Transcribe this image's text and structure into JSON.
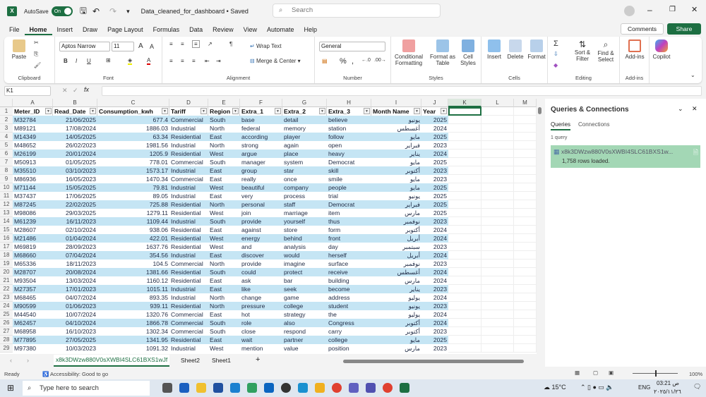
{
  "app": {
    "autosave_label": "AutoSave",
    "autosave_state": "On",
    "doc_title": "Data_cleaned_for_dashboard • Saved",
    "search_placeholder": "Search"
  },
  "menu": [
    "File",
    "Home",
    "Insert",
    "Draw",
    "Page Layout",
    "Formulas",
    "Data",
    "Review",
    "View",
    "Automate",
    "Help"
  ],
  "menu_active": "Home",
  "buttons": {
    "comments": "Comments",
    "share": "Share"
  },
  "ribbon": {
    "clipboard": {
      "paste": "Paste",
      "label": "Clipboard"
    },
    "font": {
      "name": "Aptos Narrow",
      "size": "11",
      "label": "Font",
      "bold": "B",
      "italic": "I",
      "underline": "U"
    },
    "alignment": {
      "wrap": "Wrap Text",
      "merge": "Merge & Center",
      "label": "Alignment"
    },
    "number": {
      "format": "General",
      "label": "Number",
      "percent": "%"
    },
    "styles": {
      "conditional": "Conditional Formatting",
      "format_table": "Format as Table",
      "cell_styles": "Cell Styles",
      "label": "Styles"
    },
    "cells": {
      "insert": "Insert",
      "delete": "Delete",
      "format": "Format",
      "label": "Cells"
    },
    "editing": {
      "sort": "Sort & Filter",
      "find": "Find & Select",
      "label": "Editing"
    },
    "addins": {
      "addins": "Add-ins",
      "label": "Add-ins"
    },
    "copilot": {
      "label": "Copilot"
    }
  },
  "formula_bar": {
    "name_box": "K1",
    "fx": "fx",
    "value": ""
  },
  "columns": [
    "A",
    "B",
    "C",
    "D",
    "E",
    "F",
    "G",
    "H",
    "I",
    "J",
    "K",
    "L",
    "M"
  ],
  "headers": [
    "Meter_ID",
    "Read_Date",
    "Consumption_kwh",
    "Tariff",
    "Region",
    "Extra_1",
    "Extra_2",
    "Extra_3",
    "Month Name",
    "Year"
  ],
  "rows": [
    [
      "M32784",
      "21/06/2025",
      "677.4",
      "Commercial",
      "South",
      "base",
      "detail",
      "believe",
      "يونيو",
      "2025"
    ],
    [
      "M89121",
      "17/08/2024",
      "1886.03",
      "Industrial",
      "North",
      "federal",
      "memory",
      "station",
      "أغسطس",
      "2024"
    ],
    [
      "M14349",
      "14/05/2025",
      "63.34",
      "Residential",
      "East",
      "according",
      "player",
      "follow",
      "مايو",
      "2025"
    ],
    [
      "M48652",
      "26/02/2023",
      "1981.56",
      "Industrial",
      "North",
      "strong",
      "again",
      "open",
      "فبراير",
      "2023"
    ],
    [
      "M26199",
      "20/01/2024",
      "1205.9",
      "Residential",
      "West",
      "argue",
      "place",
      "heavy",
      "يناير",
      "2024"
    ],
    [
      "M50913",
      "01/05/2025",
      "778.01",
      "Commercial",
      "South",
      "manager",
      "system",
      "Democrat",
      "مايو",
      "2025"
    ],
    [
      "M35510",
      "03/10/2023",
      "1573.17",
      "Industrial",
      "East",
      "group",
      "star",
      "skill",
      "أكتوبر",
      "2023"
    ],
    [
      "M86936",
      "16/05/2023",
      "1470.34",
      "Commercial",
      "East",
      "really",
      "once",
      "smile",
      "مايو",
      "2023"
    ],
    [
      "M71144",
      "15/05/2025",
      "79.81",
      "Industrial",
      "West",
      "beautiful",
      "company",
      "people",
      "مايو",
      "2025"
    ],
    [
      "M37437",
      "17/06/2025",
      "89.05",
      "Industrial",
      "East",
      "very",
      "process",
      "trial",
      "يونيو",
      "2025"
    ],
    [
      "M87245",
      "22/02/2025",
      "725.88",
      "Residential",
      "North",
      "personal",
      "staff",
      "Democrat",
      "فبراير",
      "2025"
    ],
    [
      "M98086",
      "29/03/2025",
      "1279.11",
      "Residential",
      "West",
      "join",
      "marriage",
      "item",
      "مارس",
      "2025"
    ],
    [
      "M61239",
      "16/11/2023",
      "1109.44",
      "Industrial",
      "South",
      "provide",
      "yourself",
      "thus",
      "نوفمبر",
      "2023"
    ],
    [
      "M28607",
      "02/10/2024",
      "938.06",
      "Residential",
      "East",
      "against",
      "store",
      "form",
      "أكتوبر",
      "2024"
    ],
    [
      "M21486",
      "01/04/2024",
      "422.01",
      "Residential",
      "West",
      "energy",
      "behind",
      "front",
      "أبريل",
      "2024"
    ],
    [
      "M69819",
      "28/09/2023",
      "1637.76",
      "Residential",
      "West",
      "and",
      "analysis",
      "day",
      "سبتمبر",
      "2023"
    ],
    [
      "M68660",
      "07/04/2024",
      "354.56",
      "Industrial",
      "East",
      "discover",
      "would",
      "herself",
      "أبريل",
      "2024"
    ],
    [
      "M65336",
      "18/11/2023",
      "104.5",
      "Commercial",
      "North",
      "provide",
      "imagine",
      "surface",
      "نوفمبر",
      "2023"
    ],
    [
      "M28707",
      "20/08/2024",
      "1381.66",
      "Residential",
      "South",
      "could",
      "protect",
      "receive",
      "أغسطس",
      "2024"
    ],
    [
      "M93504",
      "13/03/2024",
      "1160.12",
      "Residential",
      "East",
      "ask",
      "bar",
      "building",
      "مارس",
      "2024"
    ],
    [
      "M27357",
      "17/01/2023",
      "1015.11",
      "Industrial",
      "East",
      "like",
      "seek",
      "become",
      "يناير",
      "2023"
    ],
    [
      "M68465",
      "04/07/2024",
      "893.35",
      "Industrial",
      "North",
      "change",
      "game",
      "address",
      "يوليو",
      "2024"
    ],
    [
      "M90599",
      "01/06/2023",
      "939.11",
      "Residential",
      "North",
      "pressure",
      "college",
      "student",
      "يونيو",
      "2023"
    ],
    [
      "M44540",
      "10/07/2024",
      "1320.76",
      "Commercial",
      "East",
      "hot",
      "strategy",
      "the",
      "يوليو",
      "2024"
    ],
    [
      "M62457",
      "04/10/2024",
      "1866.78",
      "Commercial",
      "South",
      "role",
      "also",
      "Congress",
      "أكتوبر",
      "2024"
    ],
    [
      "M68958",
      "16/10/2023",
      "1302.34",
      "Commercial",
      "South",
      "close",
      "respond",
      "carry",
      "أكتوبر",
      "2023"
    ],
    [
      "M77895",
      "27/05/2025",
      "1341.95",
      "Residential",
      "East",
      "wait",
      "partner",
      "college",
      "مايو",
      "2025"
    ],
    [
      "M97380",
      "10/03/2023",
      "1091.32",
      "Industrial",
      "West",
      "mention",
      "value",
      "position",
      "مارس",
      "2023"
    ]
  ],
  "queries_pane": {
    "title": "Queries & Connections",
    "tab_queries": "Queries",
    "tab_connections": "Connections",
    "count": "1 query",
    "query_name": "x8k3DWzw880V0sXWBI4SLC61BXS1w...",
    "query_status": "1,758 rows loaded."
  },
  "sheets": [
    "x8k3DWzw880V0sXWBI4SLC61BXS1wJf",
    "Sheet2",
    "Sheet1"
  ],
  "status": {
    "ready": "Ready",
    "accessibility": "Accessibility: Good to go",
    "zoom": "100%"
  },
  "taskbar": {
    "search_placeholder": "Type here to search",
    "weather": "15°C",
    "lang": "ENG",
    "time": "03:21 ص",
    "date": "٢٠٢٥/١١/٢٦"
  },
  "colors": {
    "accent": "#1d6f42",
    "band": "#c5e5f4",
    "query_bg": "#a3d7b5"
  }
}
